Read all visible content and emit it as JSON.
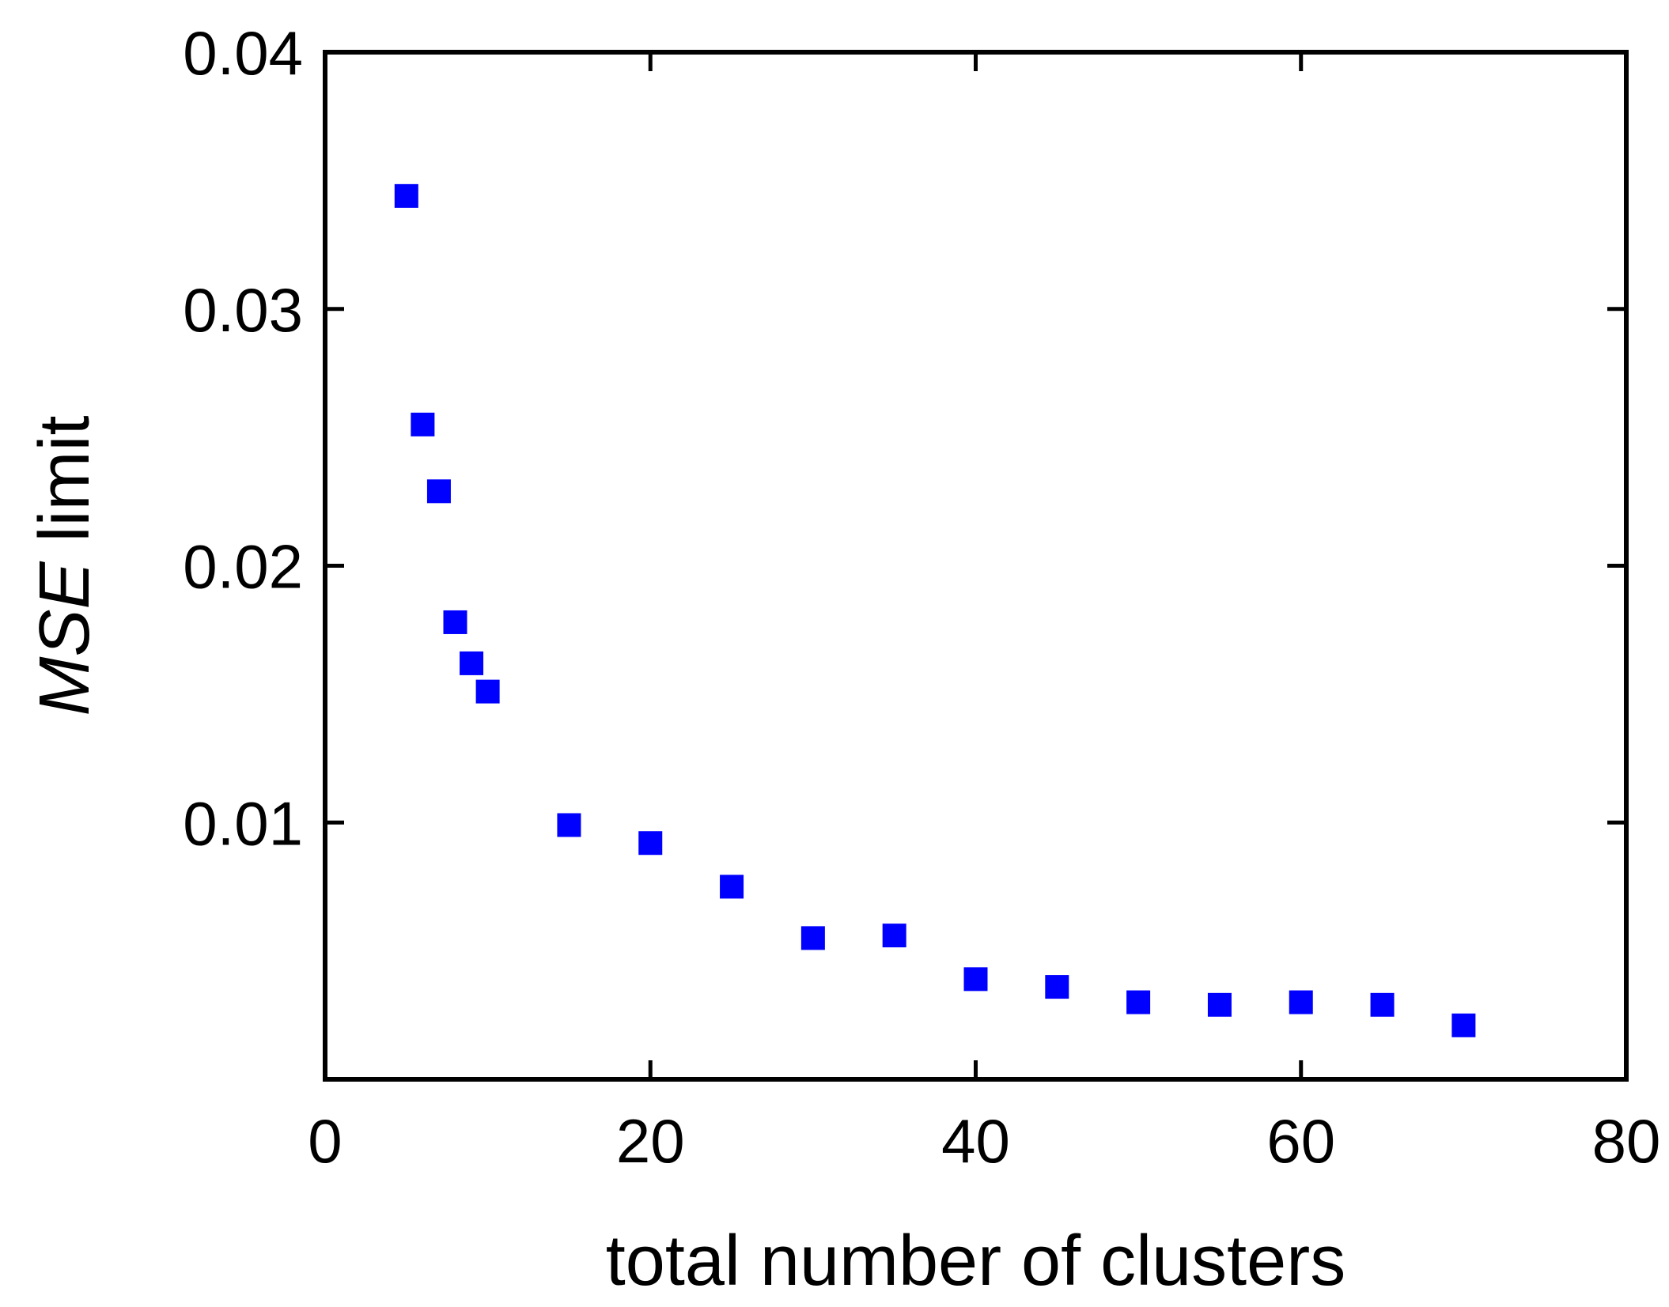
{
  "chart_data": {
    "type": "scatter",
    "title": "",
    "xlabel": "total number of clusters",
    "ylabel_italic": "MSE",
    "ylabel_rest": " limit",
    "xlim": [
      0,
      80
    ],
    "ylim": [
      0,
      0.04
    ],
    "grid": false,
    "x_ticks": [
      0,
      20,
      40,
      60,
      80
    ],
    "x_tick_labels": [
      "0",
      "20",
      "40",
      "60",
      "80"
    ],
    "y_ticks": [
      0.01,
      0.02,
      0.03,
      0.04
    ],
    "y_tick_labels": [
      "0.01",
      "0.02",
      "0.03",
      "0.04"
    ],
    "marker": "square",
    "marker_color": "#0000ff",
    "series": [
      {
        "x": [
          5,
          6,
          7,
          8,
          9,
          10,
          15,
          20,
          25,
          30,
          35,
          40,
          45,
          50,
          55,
          60,
          65,
          70
        ],
        "y": [
          0.0344,
          0.0255,
          0.0229,
          0.0178,
          0.0162,
          0.0151,
          0.0099,
          0.0092,
          0.0075,
          0.0055,
          0.0056,
          0.0039,
          0.0036,
          0.003,
          0.0029,
          0.003,
          0.0029,
          0.0021
        ]
      }
    ]
  }
}
